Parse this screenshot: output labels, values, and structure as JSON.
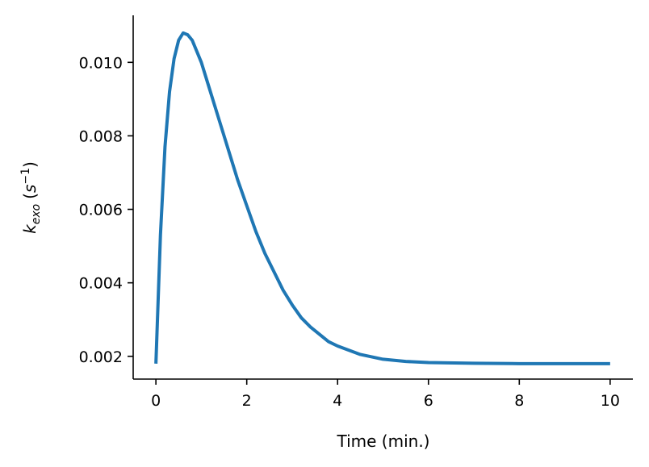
{
  "chart_data": {
    "type": "line",
    "xlabel": "Time (min.)",
    "ylabel_main": "k",
    "ylabel_sub": "exo",
    "ylabel_unit_open": "(",
    "ylabel_unit_base": "s",
    "ylabel_unit_exp": "−1",
    "ylabel_unit_close": ")",
    "xlim": [
      -0.5,
      10.5
    ],
    "ylim": [
      0.00138,
      0.01128
    ],
    "xticks": [
      0,
      2,
      4,
      6,
      8,
      10
    ],
    "xtick_labels": [
      "0",
      "2",
      "4",
      "6",
      "8",
      "10"
    ],
    "yticks": [
      0.002,
      0.004,
      0.006,
      0.008,
      0.01
    ],
    "ytick_labels": [
      "0.002",
      "0.004",
      "0.006",
      "0.008",
      "0.010"
    ],
    "grid": false,
    "series": [
      {
        "color": "#1f77b4",
        "x": [
          0,
          0.1,
          0.2,
          0.3,
          0.4,
          0.5,
          0.6,
          0.7,
          0.8,
          0.9,
          1.0,
          1.2,
          1.4,
          1.6,
          1.8,
          2.0,
          2.2,
          2.4,
          2.6,
          2.8,
          3.0,
          3.2,
          3.4,
          3.6,
          3.8,
          4.0,
          4.5,
          5.0,
          5.5,
          6.0,
          7.0,
          8.0,
          9.0,
          10.0
        ],
        "y": [
          0.0018,
          0.0053,
          0.0077,
          0.0092,
          0.0101,
          0.0106,
          0.0108,
          0.01075,
          0.0106,
          0.0103,
          0.01,
          0.0092,
          0.0084,
          0.0076,
          0.0068,
          0.0061,
          0.0054,
          0.0048,
          0.0043,
          0.0038,
          0.0034,
          0.00305,
          0.0028,
          0.0026,
          0.0024,
          0.00228,
          0.00205,
          0.00192,
          0.00186,
          0.00183,
          0.00181,
          0.0018,
          0.0018,
          0.0018
        ]
      }
    ]
  }
}
